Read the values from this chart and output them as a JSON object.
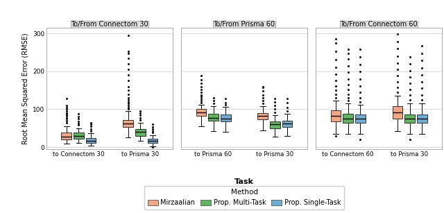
{
  "panels": [
    {
      "title": "To/From Connectom 30",
      "tasks": [
        "to Connectom 30",
        "to Prisma 30"
      ],
      "boxes": [
        {
          "task_idx": 0,
          "method_idx": 0,
          "color": "#F4A582",
          "edge_color": "#333333",
          "q1": 20,
          "median": 28,
          "q3": 38,
          "whislo": 10,
          "whishi": 55,
          "fliers": [
            65,
            70,
            75,
            78,
            82,
            85,
            88,
            90,
            95,
            100,
            105,
            110,
            128
          ]
        },
        {
          "task_idx": 0,
          "method_idx": 1,
          "color": "#5DB85C",
          "edge_color": "#333333",
          "q1": 22,
          "median": 30,
          "q3": 38,
          "whislo": 12,
          "whishi": 50,
          "fliers": [
            58,
            62,
            68,
            75,
            80,
            88
          ]
        },
        {
          "task_idx": 0,
          "method_idx": 2,
          "color": "#6BAED6",
          "edge_color": "#333333",
          "q1": 12,
          "median": 17,
          "q3": 24,
          "whislo": 4,
          "whishi": 36,
          "fliers": [
            42,
            48,
            55,
            60,
            65
          ]
        },
        {
          "task_idx": 1,
          "method_idx": 0,
          "color": "#F4A582",
          "edge_color": "#333333",
          "q1": 53,
          "median": 63,
          "q3": 72,
          "whislo": 25,
          "whishi": 95,
          "fliers": [
            100,
            105,
            110,
            115,
            120,
            125,
            130,
            140,
            150,
            160,
            175,
            190,
            205,
            220,
            235,
            248,
            252,
            295
          ]
        },
        {
          "task_idx": 1,
          "method_idx": 1,
          "color": "#5DB85C",
          "edge_color": "#333333",
          "q1": 30,
          "median": 40,
          "q3": 48,
          "whislo": 16,
          "whishi": 65,
          "fliers": [
            72,
            78,
            85,
            90,
            95
          ]
        },
        {
          "task_idx": 1,
          "method_idx": 2,
          "color": "#6BAED6",
          "edge_color": "#333333",
          "q1": 11,
          "median": 16,
          "q3": 22,
          "whislo": 3,
          "whishi": 32,
          "fliers": [
            38,
            42,
            48,
            53,
            60,
            0
          ]
        }
      ]
    },
    {
      "title": "To/From Prisma 60",
      "tasks": [
        "to Prisma 60",
        "to Prisma 30"
      ],
      "boxes": [
        {
          "task_idx": 0,
          "method_idx": 0,
          "color": "#F4A582",
          "edge_color": "#333333",
          "q1": 83,
          "median": 92,
          "q3": 100,
          "whislo": 55,
          "whishi": 112,
          "fliers": [
            118,
            122,
            128,
            133,
            138,
            145,
            152,
            160,
            168,
            178,
            188
          ]
        },
        {
          "task_idx": 0,
          "method_idx": 1,
          "color": "#5DB85C",
          "edge_color": "#333333",
          "q1": 70,
          "median": 78,
          "q3": 88,
          "whislo": 42,
          "whishi": 108,
          "fliers": [
            115,
            122,
            130
          ]
        },
        {
          "task_idx": 0,
          "method_idx": 2,
          "color": "#6BAED6",
          "edge_color": "#333333",
          "q1": 68,
          "median": 76,
          "q3": 86,
          "whislo": 40,
          "whishi": 106,
          "fliers": [
            112,
            118,
            128
          ]
        },
        {
          "task_idx": 1,
          "method_idx": 0,
          "color": "#F4A582",
          "edge_color": "#333333",
          "q1": 73,
          "median": 82,
          "q3": 90,
          "whislo": 45,
          "whishi": 108,
          "fliers": [
            115,
            122,
            130,
            138,
            148,
            158,
            160
          ]
        },
        {
          "task_idx": 1,
          "method_idx": 1,
          "color": "#5DB85C",
          "edge_color": "#333333",
          "q1": 50,
          "median": 60,
          "q3": 68,
          "whislo": 28,
          "whishi": 85,
          "fliers": [
            92,
            100,
            110,
            120,
            128
          ]
        },
        {
          "task_idx": 1,
          "method_idx": 2,
          "color": "#6BAED6",
          "edge_color": "#333333",
          "q1": 53,
          "median": 62,
          "q3": 70,
          "whislo": 30,
          "whishi": 88,
          "fliers": [
            95,
            105,
            118,
            128
          ]
        }
      ]
    },
    {
      "title": "To/From Connectom 60",
      "tasks": [
        "to Connectom 60",
        "to Prisma 30"
      ],
      "boxes": [
        {
          "task_idx": 0,
          "method_idx": 0,
          "color": "#F4A582",
          "edge_color": "#333333",
          "q1": 68,
          "median": 82,
          "q3": 98,
          "whislo": 35,
          "whishi": 122,
          "fliers": [
            130,
            140,
            150,
            162,
            175,
            192,
            210,
            230,
            252,
            275,
            285,
            30
          ]
        },
        {
          "task_idx": 0,
          "method_idx": 1,
          "color": "#5DB85C",
          "edge_color": "#333333",
          "q1": 65,
          "median": 76,
          "q3": 88,
          "whislo": 35,
          "whishi": 115,
          "fliers": [
            122,
            130,
            140,
            152,
            165,
            180,
            198,
            215,
            232,
            248,
            258
          ]
        },
        {
          "task_idx": 0,
          "method_idx": 2,
          "color": "#6BAED6",
          "edge_color": "#333333",
          "q1": 65,
          "median": 76,
          "q3": 87,
          "whislo": 35,
          "whishi": 112,
          "fliers": [
            120,
            130,
            145,
            162,
            180,
            200,
            218,
            238,
            258,
            20
          ]
        },
        {
          "task_idx": 1,
          "method_idx": 0,
          "color": "#F4A582",
          "edge_color": "#333333",
          "q1": 76,
          "median": 92,
          "q3": 108,
          "whislo": 42,
          "whishi": 135,
          "fliers": [
            145,
            158,
            172,
            188,
            205,
            222,
            240,
            260,
            278,
            298
          ]
        },
        {
          "task_idx": 1,
          "method_idx": 1,
          "color": "#5DB85C",
          "edge_color": "#333333",
          "q1": 65,
          "median": 76,
          "q3": 87,
          "whislo": 35,
          "whishi": 115,
          "fliers": [
            125,
            138,
            152,
            168,
            185,
            202,
            220,
            238,
            20
          ]
        },
        {
          "task_idx": 1,
          "method_idx": 2,
          "color": "#6BAED6",
          "edge_color": "#333333",
          "q1": 65,
          "median": 76,
          "q3": 87,
          "whislo": 35,
          "whishi": 115,
          "fliers": [
            125,
            138,
            155,
            172,
            190,
            208,
            228,
            248,
            268
          ]
        }
      ]
    }
  ],
  "ylim": [
    -5,
    315
  ],
  "yticks": [
    0,
    100,
    200,
    300
  ],
  "ylabel": "Root Mean Squared Error (RMSE)",
  "xlabel": "Task",
  "bg": "#FFFFFF",
  "panel_bg": "#FFFFFF",
  "grid_color": "#D3D3D3",
  "strip_bg": "#DEDEDE",
  "strip_border": "#AAAAAA",
  "methods": [
    "Mirzaalian",
    "Prop. Multi-Task",
    "Prop. Single-Task"
  ],
  "method_colors": [
    "#F4A582",
    "#5DB85C",
    "#6BAED6"
  ],
  "method_edge_colors": [
    "#333333",
    "#333333",
    "#333333"
  ]
}
